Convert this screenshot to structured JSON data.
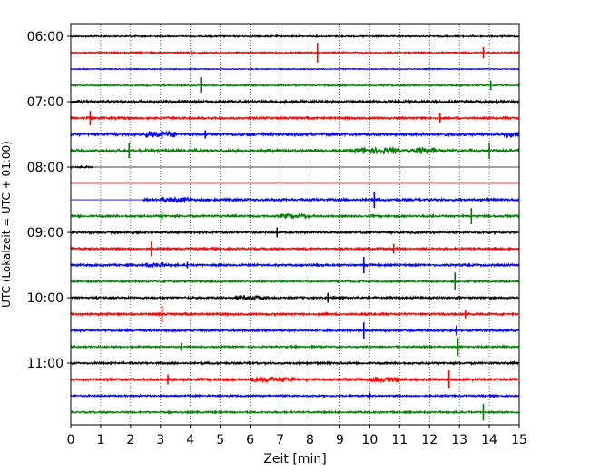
{
  "chart_data": {
    "type": "line",
    "xlabel": "Zeit  [min]",
    "ylabel": "UTC (Lokalzeit = UTC + 01:00)",
    "xlim": [
      0,
      15
    ],
    "x_ticks": [
      "0",
      "1",
      "2",
      "3",
      "4",
      "5",
      "6",
      "7",
      "8",
      "9",
      "10",
      "11",
      "12",
      "13",
      "14",
      "15"
    ],
    "y_tick_labels": [
      "06:00",
      "07:00",
      "08:00",
      "09:00",
      "10:00",
      "11:00"
    ],
    "y_tick_rows": [
      0,
      4,
      8,
      12,
      16,
      20
    ],
    "vertical_grid": "dotted",
    "colors": [
      "#000000",
      "#ff0000",
      "#0000ff",
      "#008000"
    ],
    "traces": [
      {
        "start": "06:00",
        "color": "#000000",
        "amp": 0.25,
        "noisy": [],
        "events": []
      },
      {
        "start": "06:15",
        "color": "#ff0000",
        "amp": 0.25,
        "noisy": [],
        "events": [
          [
            4.05,
            0.4
          ],
          [
            8.25,
            1.2
          ],
          [
            13.8,
            0.7
          ]
        ]
      },
      {
        "start": "06:30",
        "color": "#0000ff",
        "amp": 0.15,
        "noisy": [],
        "events": []
      },
      {
        "start": "06:45",
        "color": "#008000",
        "amp": 0.25,
        "noisy": [],
        "events": [
          [
            4.35,
            1.0
          ],
          [
            14.05,
            0.6
          ]
        ]
      },
      {
        "start": "07:00",
        "color": "#000000",
        "amp": 0.45,
        "noisy": [],
        "events": []
      },
      {
        "start": "07:15",
        "color": "#ff0000",
        "amp": 0.35,
        "noisy": [],
        "events": [
          [
            0.65,
            0.9
          ],
          [
            12.35,
            0.6
          ]
        ]
      },
      {
        "start": "07:30",
        "color": "#0000ff",
        "amp": 0.45,
        "noisy": [
          [
            2.5,
            3.5
          ],
          [
            14.5,
            15
          ]
        ],
        "events": [
          [
            3.05,
            0.5
          ],
          [
            4.5,
            0.5
          ]
        ]
      },
      {
        "start": "07:45",
        "color": "#008000",
        "amp": 0.5,
        "noisy": [
          [
            9.5,
            11
          ],
          [
            11.5,
            12.2
          ]
        ],
        "events": [
          [
            1.95,
            0.9
          ],
          [
            14,
            1.0
          ]
        ]
      },
      {
        "start": "08:00",
        "color": "#000000",
        "amp": 0.3,
        "noisy": [],
        "events": [],
        "data_end": 0.75
      },
      {
        "start": "08:15",
        "color": "#ff0000",
        "amp": 0.0,
        "noisy": [],
        "events": [],
        "data_end": 0
      },
      {
        "start": "08:30",
        "color": "#0000ff",
        "amp": 0.4,
        "noisy": [
          [
            3,
            4
          ]
        ],
        "events": [
          [
            10.15,
            1.0
          ]
        ],
        "data_start": 2.4
      },
      {
        "start": "08:45",
        "color": "#008000",
        "amp": 0.35,
        "noisy": [
          [
            7,
            8
          ]
        ],
        "events": [
          [
            3.05,
            0.5
          ],
          [
            13.4,
            1.0
          ]
        ]
      },
      {
        "start": "09:00",
        "color": "#000000",
        "amp": 0.35,
        "noisy": [],
        "events": [
          [
            6.9,
            0.6
          ]
        ]
      },
      {
        "start": "09:15",
        "color": "#ff0000",
        "amp": 0.35,
        "noisy": [],
        "events": [
          [
            2.7,
            0.9
          ],
          [
            10.8,
            0.6
          ]
        ]
      },
      {
        "start": "09:30",
        "color": "#0000ff",
        "amp": 0.35,
        "noisy": [
          [
            2.5,
            3.2
          ]
        ],
        "events": [
          [
            9.8,
            1.0
          ],
          [
            3.9,
            0.4
          ]
        ]
      },
      {
        "start": "09:45",
        "color": "#008000",
        "amp": 0.3,
        "noisy": [],
        "events": [
          [
            12.85,
            1.1
          ]
        ]
      },
      {
        "start": "10:00",
        "color": "#000000",
        "amp": 0.35,
        "noisy": [
          [
            5.5,
            6.5
          ]
        ],
        "events": [
          [
            8.6,
            0.6
          ]
        ]
      },
      {
        "start": "10:15",
        "color": "#ff0000",
        "amp": 0.35,
        "noisy": [],
        "events": [
          [
            3.05,
            1.0
          ],
          [
            13.2,
            0.5
          ]
        ]
      },
      {
        "start": "10:30",
        "color": "#0000ff",
        "amp": 0.35,
        "noisy": [],
        "events": [
          [
            9.8,
            1.0
          ],
          [
            12.9,
            0.6
          ]
        ]
      },
      {
        "start": "10:45",
        "color": "#008000",
        "amp": 0.3,
        "noisy": [],
        "events": [
          [
            3.7,
            0.5
          ],
          [
            12.95,
            1.1
          ]
        ]
      },
      {
        "start": "11:00",
        "color": "#000000",
        "amp": 0.35,
        "noisy": [],
        "events": []
      },
      {
        "start": "11:15",
        "color": "#ff0000",
        "amp": 0.4,
        "noisy": [
          [
            6,
            7.5
          ],
          [
            10,
            11
          ]
        ],
        "events": [
          [
            3.25,
            0.6
          ],
          [
            12.65,
            1.1
          ]
        ]
      },
      {
        "start": "11:30",
        "color": "#0000ff",
        "amp": 0.3,
        "noisy": [],
        "events": [
          [
            10,
            0.4
          ]
        ]
      },
      {
        "start": "11:45",
        "color": "#008000",
        "amp": 0.3,
        "noisy": [],
        "events": [
          [
            13.8,
            1.0
          ]
        ]
      }
    ]
  }
}
